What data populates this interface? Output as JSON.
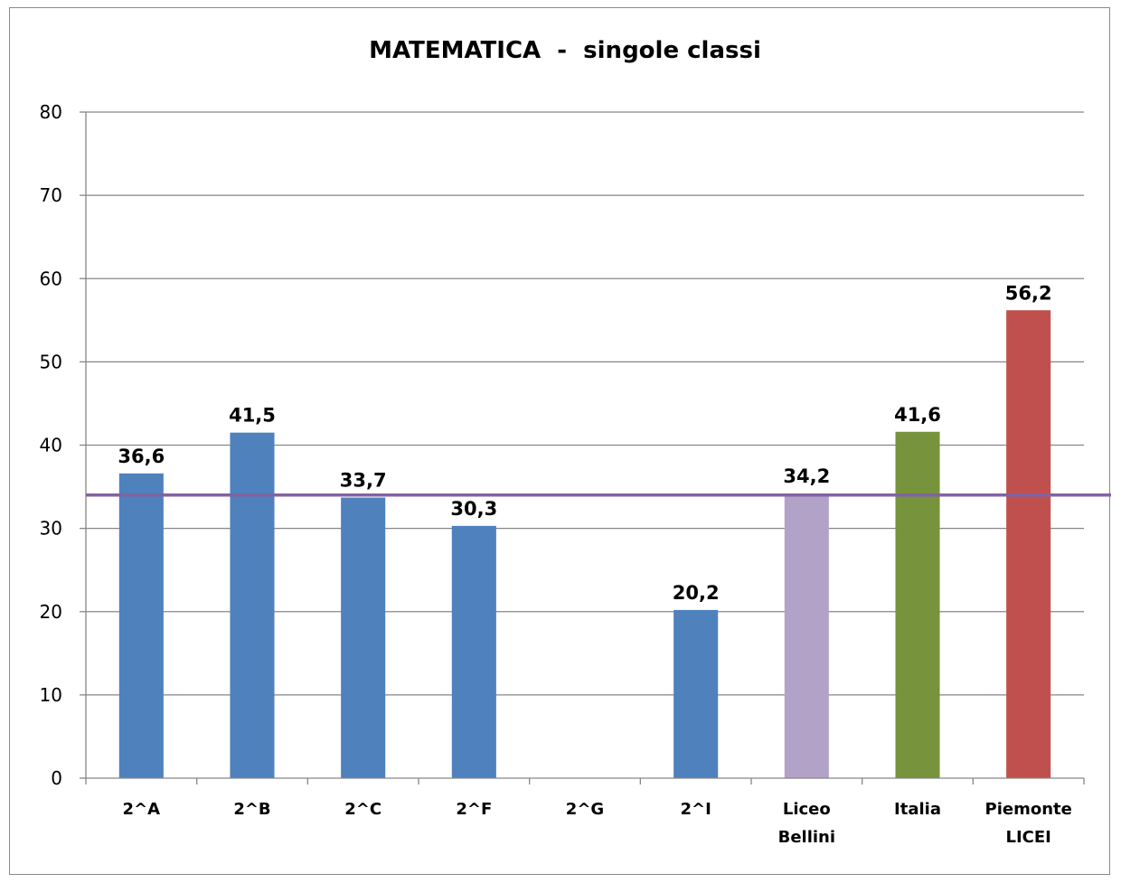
{
  "chart_data": {
    "type": "bar",
    "title": "MATEMATICA  -  singole classi",
    "xlabel": "",
    "ylabel": "",
    "ylim": [
      0,
      80
    ],
    "yticks": [
      0,
      10,
      20,
      30,
      40,
      50,
      60,
      70,
      80
    ],
    "grid": true,
    "legend": "none",
    "categories": [
      [
        "2^A"
      ],
      [
        "2^B"
      ],
      [
        "2^C"
      ],
      [
        "2^F"
      ],
      [
        "2^G"
      ],
      [
        "2^I"
      ],
      [
        "Liceo",
        "Bellini"
      ],
      [
        "Italia"
      ],
      [
        "Piemonte",
        "LICEI"
      ]
    ],
    "values": [
      36.6,
      41.5,
      33.7,
      30.3,
      null,
      20.2,
      34.2,
      41.6,
      56.2
    ],
    "value_labels": [
      "36,6",
      "41,5",
      "33,7",
      "30,3",
      "",
      "20,2",
      "34,2",
      "41,6",
      "56,2"
    ],
    "bar_colors": [
      "#4f81bd",
      "#4f81bd",
      "#4f81bd",
      "#4f81bd",
      "#4f81bd",
      "#4f81bd",
      "#b3a2c7",
      "#77933c",
      "#c0504d"
    ],
    "reference_line": {
      "value": 34.0,
      "color": "#8064a2"
    },
    "grid_color": "#868686"
  }
}
